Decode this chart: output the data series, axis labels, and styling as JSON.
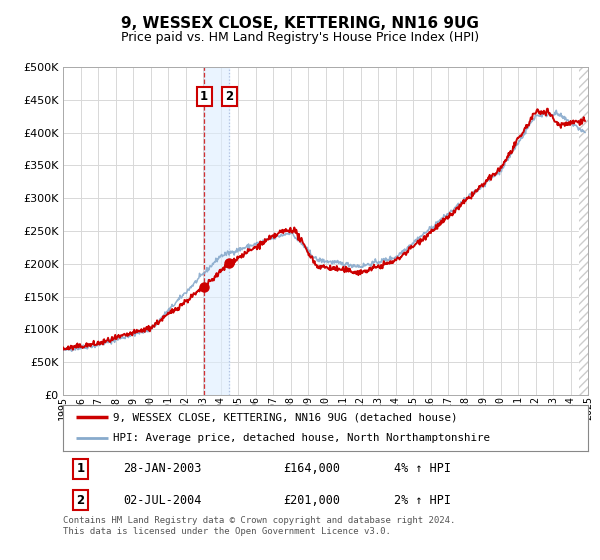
{
  "title": "9, WESSEX CLOSE, KETTERING, NN16 9UG",
  "subtitle": "Price paid vs. HM Land Registry's House Price Index (HPI)",
  "bg_color": "#ffffff",
  "plot_bg_color": "#ffffff",
  "grid_color": "#d8d8d8",
  "line1_color": "#cc0000",
  "line2_color": "#88aacc",
  "ylim": [
    0,
    500000
  ],
  "yticks": [
    0,
    50000,
    100000,
    150000,
    200000,
    250000,
    300000,
    350000,
    400000,
    450000,
    500000
  ],
  "ytick_labels": [
    "£0",
    "£50K",
    "£100K",
    "£150K",
    "£200K",
    "£250K",
    "£300K",
    "£350K",
    "£400K",
    "£450K",
    "£500K"
  ],
  "xtick_labels": [
    "1995",
    "1996",
    "1997",
    "1998",
    "1999",
    "2000",
    "2001",
    "2002",
    "2003",
    "2004",
    "2005",
    "2006",
    "2007",
    "2008",
    "2009",
    "2010",
    "2011",
    "2012",
    "2013",
    "2014",
    "2015",
    "2016",
    "2017",
    "2018",
    "2019",
    "2020",
    "2021",
    "2022",
    "2023",
    "2024",
    "2025"
  ],
  "legend_label1": "9, WESSEX CLOSE, KETTERING, NN16 9UG (detached house)",
  "legend_label2": "HPI: Average price, detached house, North Northamptonshire",
  "marker1_x": 2003.07,
  "marker1_y": 164000,
  "marker2_x": 2004.5,
  "marker2_y": 201000,
  "vline1_x": 2003.07,
  "vline2_x": 2004.5,
  "shade_x1": 2003.07,
  "shade_x2": 2004.5,
  "xmin": 1995,
  "xmax": 2025,
  "footer": "Contains HM Land Registry data © Crown copyright and database right 2024.\nThis data is licensed under the Open Government Licence v3.0.",
  "marker_box_color": "#cc0000",
  "hatch_color": "#cccccc"
}
